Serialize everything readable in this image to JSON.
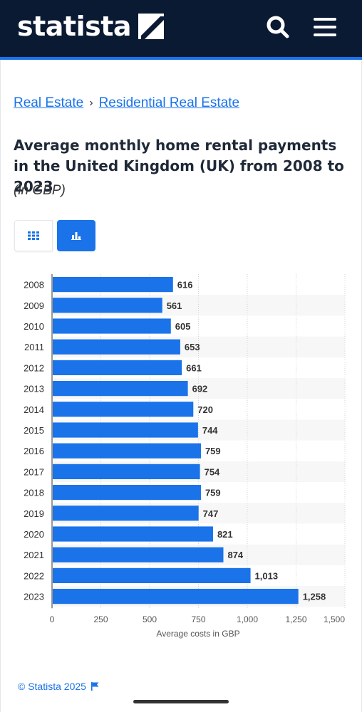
{
  "header": {
    "logo_text": "statista",
    "icons": [
      "search-icon",
      "menu-icon"
    ],
    "colors": {
      "background": "#0b1a33",
      "accent": "#1a73e8"
    }
  },
  "breadcrumb": {
    "items": [
      "Real Estate",
      "Residential Real Estate"
    ],
    "separator": "›"
  },
  "page": {
    "title": "Average monthly home rental payments in the United Kingdom (UK) from 2008 to 2023",
    "subtitle": "(in GBP)"
  },
  "view_toggle": {
    "icons": [
      "table-icon",
      "bar-chart-icon"
    ],
    "active": "bar-chart-icon"
  },
  "chart_data": {
    "type": "bar",
    "orientation": "horizontal",
    "categories": [
      "2008",
      "2009",
      "2010",
      "2011",
      "2012",
      "2013",
      "2014",
      "2015",
      "2016",
      "2017",
      "2018",
      "2019",
      "2020",
      "2021",
      "2022",
      "2023"
    ],
    "values": [
      616,
      561,
      605,
      653,
      661,
      692,
      720,
      744,
      759,
      754,
      759,
      747,
      821,
      874,
      1013,
      1258
    ],
    "value_labels": [
      "616",
      "561",
      "605",
      "653",
      "661",
      "692",
      "720",
      "744",
      "759",
      "754",
      "759",
      "747",
      "821",
      "874",
      "1,013",
      "1,258"
    ],
    "x_ticks": [
      0,
      250,
      500,
      750,
      1000,
      1250,
      1500
    ],
    "x_tick_labels": [
      "0",
      "250",
      "500",
      "750",
      "1,000",
      "1,250",
      "1,500"
    ],
    "xlabel": "Average costs in GBP",
    "xlim": [
      0,
      1500
    ],
    "bar_color": "#1a73e8",
    "grid": true
  },
  "footer": {
    "copyright": "© Statista 2025",
    "icon": "flag-icon"
  }
}
